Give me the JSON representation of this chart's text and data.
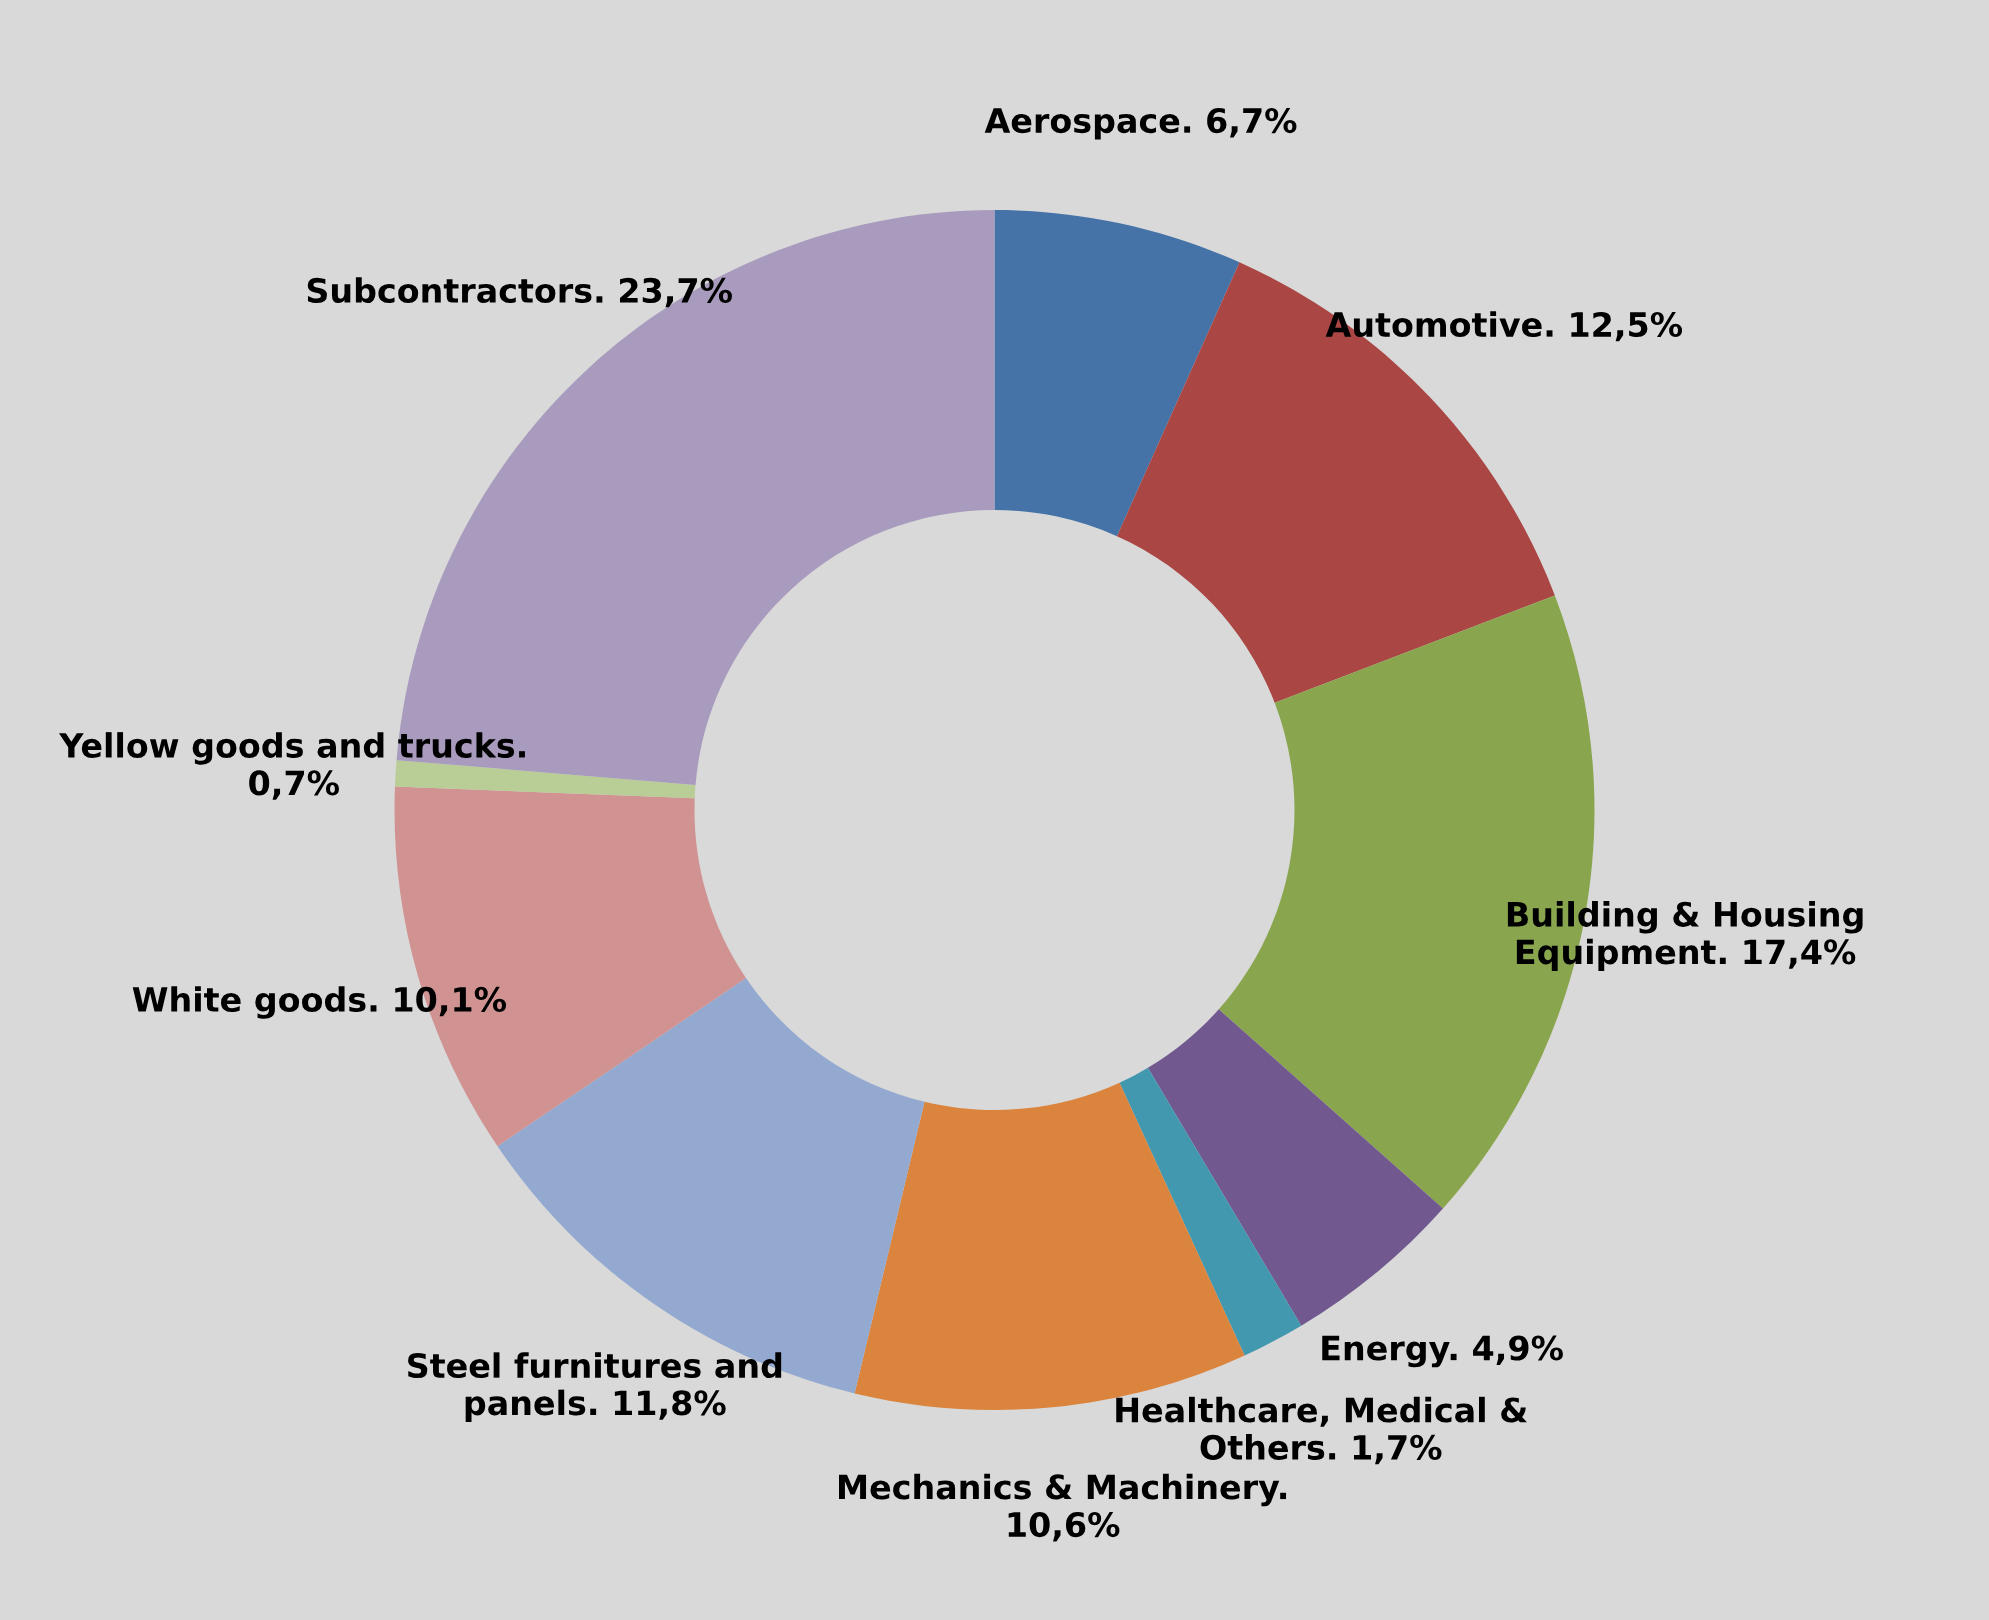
{
  "chart_data": {
    "type": "donut",
    "categories": [
      "Aerospace. 6,7%",
      "Automotive. 12,5%",
      "Building & Housing\nEquipment. 17,4%",
      "Energy. 4,9%",
      "Healthcare, Medical &\nOthers. 1,7%",
      "Mechanics & Machinery.\n10,6%",
      "Steel furnitures and\npanels. 11,8%",
      "White goods. 10,1%",
      "Yellow goods and trucks.\n0,7%",
      "Subcontractors. 23,7%"
    ],
    "values": [
      6.7,
      12.5,
      17.4,
      4.9,
      1.7,
      10.6,
      11.8,
      10.1,
      0.7,
      23.7
    ],
    "colors": [
      "#4573a7",
      "#aa4644",
      "#89a54e",
      "#71588f",
      "#4298af",
      "#db843d",
      "#93a9d0",
      "#d09392",
      "#b9cd96",
      "#a99bbd"
    ]
  }
}
